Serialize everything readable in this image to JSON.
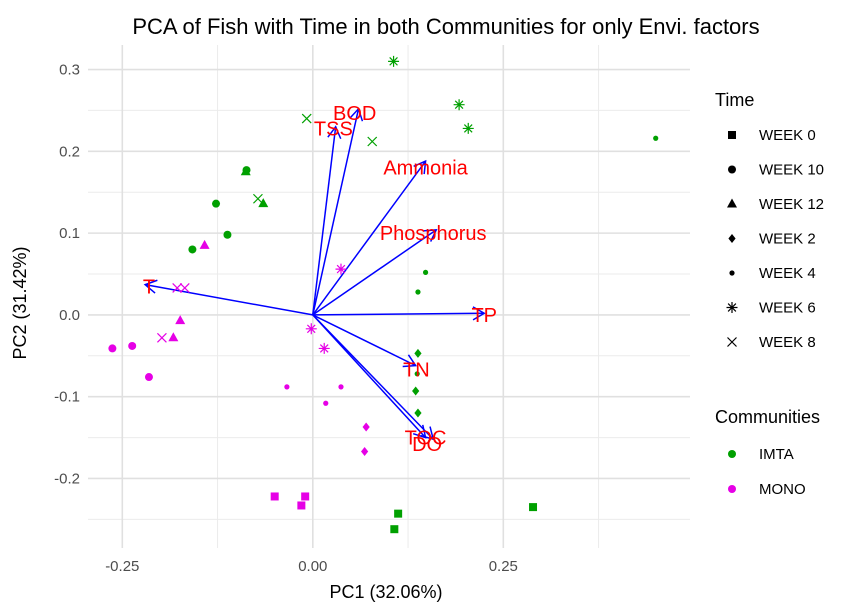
{
  "chart_data": {
    "type": "scatter",
    "title": "PCA of Fish with Time in both Communities for only Envi. factors",
    "xlabel": "PC1 (32.06%)",
    "ylabel": "PC2 (31.42%)",
    "xlim": [
      -0.295,
      0.495
    ],
    "ylim": [
      -0.285,
      0.33
    ],
    "x_ticks": [
      -0.25,
      0.0,
      0.25
    ],
    "x_tick_labels": [
      "-0.25",
      "0.00",
      "0.25"
    ],
    "y_ticks": [
      -0.2,
      -0.1,
      0.0,
      0.1,
      0.2,
      0.3
    ],
    "y_tick_labels": [
      "-0.2",
      "-0.1",
      "0.0",
      "0.1",
      "0.2",
      "0.3"
    ],
    "grid": true,
    "legend_position": "right",
    "legend_time_title": "Time",
    "legend_community_title": "Communities",
    "time_levels": [
      {
        "name": "WEEK 0",
        "shape": "square"
      },
      {
        "name": "WEEK 10",
        "shape": "circle"
      },
      {
        "name": "WEEK 12",
        "shape": "triangle"
      },
      {
        "name": "WEEK 2",
        "shape": "diamond"
      },
      {
        "name": "WEEK 4",
        "shape": "small-circle"
      },
      {
        "name": "WEEK 6",
        "shape": "asterisk"
      },
      {
        "name": "WEEK 8",
        "shape": "cross"
      }
    ],
    "communities": [
      {
        "name": "IMTA",
        "color": "#00a000"
      },
      {
        "name": "MONO",
        "color": "#e600e6"
      }
    ],
    "points": [
      {
        "x": 0.107,
        "y": -0.262,
        "week": "WEEK 0",
        "community": "IMTA"
      },
      {
        "x": 0.112,
        "y": -0.243,
        "week": "WEEK 0",
        "community": "IMTA"
      },
      {
        "x": 0.289,
        "y": -0.235,
        "week": "WEEK 0",
        "community": "IMTA"
      },
      {
        "x": -0.05,
        "y": -0.222,
        "week": "WEEK 0",
        "community": "MONO"
      },
      {
        "x": -0.01,
        "y": -0.222,
        "week": "WEEK 0",
        "community": "MONO"
      },
      {
        "x": -0.015,
        "y": -0.233,
        "week": "WEEK 0",
        "community": "MONO"
      },
      {
        "x": -0.127,
        "y": 0.136,
        "week": "WEEK 10",
        "community": "IMTA"
      },
      {
        "x": -0.112,
        "y": 0.098,
        "week": "WEEK 10",
        "community": "IMTA"
      },
      {
        "x": -0.158,
        "y": 0.08,
        "week": "WEEK 10",
        "community": "IMTA"
      },
      {
        "x": -0.087,
        "y": 0.177,
        "week": "WEEK 10",
        "community": "IMTA"
      },
      {
        "x": -0.263,
        "y": -0.041,
        "week": "WEEK 10",
        "community": "MONO"
      },
      {
        "x": -0.237,
        "y": -0.038,
        "week": "WEEK 10",
        "community": "MONO"
      },
      {
        "x": -0.215,
        "y": -0.076,
        "week": "WEEK 10",
        "community": "MONO"
      },
      {
        "x": -0.088,
        "y": 0.175,
        "week": "WEEK 12",
        "community": "IMTA"
      },
      {
        "x": -0.065,
        "y": 0.136,
        "week": "WEEK 12",
        "community": "IMTA"
      },
      {
        "x": -0.142,
        "y": 0.085,
        "week": "WEEK 12",
        "community": "MONO"
      },
      {
        "x": -0.174,
        "y": -0.007,
        "week": "WEEK 12",
        "community": "MONO"
      },
      {
        "x": -0.183,
        "y": -0.028,
        "week": "WEEK 12",
        "community": "MONO"
      },
      {
        "x": 0.138,
        "y": -0.047,
        "week": "WEEK 2",
        "community": "IMTA"
      },
      {
        "x": 0.135,
        "y": -0.093,
        "week": "WEEK 2",
        "community": "IMTA"
      },
      {
        "x": 0.138,
        "y": -0.12,
        "week": "WEEK 2",
        "community": "IMTA"
      },
      {
        "x": 0.07,
        "y": -0.137,
        "week": "WEEK 2",
        "community": "MONO"
      },
      {
        "x": 0.068,
        "y": -0.167,
        "week": "WEEK 2",
        "community": "MONO"
      },
      {
        "x": 0.148,
        "y": 0.052,
        "week": "WEEK 4",
        "community": "IMTA"
      },
      {
        "x": 0.138,
        "y": 0.028,
        "week": "WEEK 4",
        "community": "IMTA"
      },
      {
        "x": 0.137,
        "y": -0.072,
        "week": "WEEK 4",
        "community": "IMTA"
      },
      {
        "x": 0.45,
        "y": 0.216,
        "week": "WEEK 4",
        "community": "IMTA"
      },
      {
        "x": -0.034,
        "y": -0.088,
        "week": "WEEK 4",
        "community": "MONO"
      },
      {
        "x": 0.017,
        "y": -0.108,
        "week": "WEEK 4",
        "community": "MONO"
      },
      {
        "x": 0.037,
        "y": -0.088,
        "week": "WEEK 4",
        "community": "MONO"
      },
      {
        "x": 0.106,
        "y": 0.31,
        "week": "WEEK 6",
        "community": "IMTA"
      },
      {
        "x": 0.192,
        "y": 0.257,
        "week": "WEEK 6",
        "community": "IMTA"
      },
      {
        "x": 0.204,
        "y": 0.228,
        "week": "WEEK 6",
        "community": "IMTA"
      },
      {
        "x": 0.037,
        "y": 0.056,
        "week": "WEEK 6",
        "community": "MONO"
      },
      {
        "x": -0.002,
        "y": -0.017,
        "week": "WEEK 6",
        "community": "MONO"
      },
      {
        "x": 0.015,
        "y": -0.041,
        "week": "WEEK 6",
        "community": "MONO"
      },
      {
        "x": -0.008,
        "y": 0.24,
        "week": "WEEK 8",
        "community": "IMTA"
      },
      {
        "x": 0.078,
        "y": 0.212,
        "week": "WEEK 8",
        "community": "IMTA"
      },
      {
        "x": -0.072,
        "y": 0.142,
        "week": "WEEK 8",
        "community": "IMTA"
      },
      {
        "x": -0.178,
        "y": 0.033,
        "week": "WEEK 8",
        "community": "MONO"
      },
      {
        "x": -0.168,
        "y": 0.033,
        "week": "WEEK 8",
        "community": "MONO"
      },
      {
        "x": -0.198,
        "y": -0.028,
        "week": "WEEK 8",
        "community": "MONO"
      }
    ],
    "vectors": [
      {
        "name": "BOD",
        "x": 0.06,
        "y": 0.252,
        "label_x": 0.055,
        "label_y": 0.247
      },
      {
        "name": "TSS",
        "x": 0.03,
        "y": 0.23,
        "label_x": 0.027,
        "label_y": 0.228
      },
      {
        "name": "Ammonia",
        "x": 0.148,
        "y": 0.188,
        "label_x": 0.148,
        "label_y": 0.18
      },
      {
        "name": "Phosphorus",
        "x": 0.162,
        "y": 0.104,
        "label_x": 0.158,
        "label_y": 0.1
      },
      {
        "name": "T",
        "x": -0.22,
        "y": 0.037,
        "label_x": -0.215,
        "label_y": 0.035
      },
      {
        "name": "TP",
        "x": 0.225,
        "y": 0.002,
        "label_x": 0.225,
        "label_y": 0.0
      },
      {
        "name": "TN",
        "x": 0.135,
        "y": -0.062,
        "label_x": 0.136,
        "label_y": -0.067
      },
      {
        "name": "TOC",
        "x": 0.148,
        "y": -0.15,
        "label_x": 0.148,
        "label_y": -0.15
      },
      {
        "name": "DO",
        "x": 0.158,
        "y": -0.152,
        "label_x": 0.15,
        "label_y": -0.158
      }
    ]
  }
}
